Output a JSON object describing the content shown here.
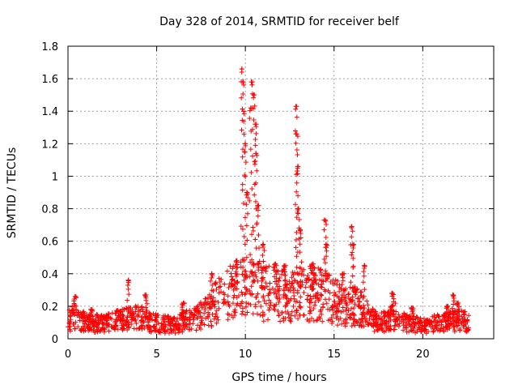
{
  "chart_data": {
    "type": "scatter",
    "title": "Day 328 of 2014, SRMTID for receiver belf",
    "xlabel": "GPS time / hours",
    "ylabel": "SRMTID / TECUs",
    "xlim": [
      0,
      24
    ],
    "ylim": [
      0,
      1.8
    ],
    "xticks": [
      0,
      5,
      10,
      15,
      20
    ],
    "xtick_labels": [
      "0",
      "5",
      "10",
      "15",
      "20"
    ],
    "yticks": [
      0,
      0.2,
      0.4,
      0.6,
      0.8,
      1,
      1.2,
      1.4,
      1.6,
      1.8
    ],
    "ytick_labels": [
      "0",
      "0.2",
      "0.4",
      "0.6",
      "0.8",
      "1",
      "1.2",
      "1.4",
      "1.6",
      "1.8"
    ],
    "grid": true,
    "marker": "plus",
    "series": [
      {
        "name": "SRMTID",
        "color": "#ff0000",
        "profile_x": [
          0.0,
          0.5,
          1.0,
          2.0,
          3.0,
          4.0,
          5.0,
          6.0,
          7.0,
          7.5,
          8.0,
          8.5,
          9.0,
          9.5,
          10.0,
          10.5,
          11.0,
          11.5,
          12.0,
          12.5,
          13.0,
          13.5,
          14.0,
          14.5,
          15.0,
          15.5,
          16.0,
          16.5,
          17.0,
          17.5,
          18.0,
          18.5,
          19.0,
          20.0,
          21.0,
          21.5,
          22.0,
          22.6
        ],
        "profile_y": [
          0.12,
          0.15,
          0.1,
          0.1,
          0.12,
          0.14,
          0.1,
          0.09,
          0.13,
          0.15,
          0.2,
          0.25,
          0.3,
          0.3,
          0.35,
          0.35,
          0.3,
          0.3,
          0.28,
          0.3,
          0.3,
          0.3,
          0.3,
          0.28,
          0.25,
          0.22,
          0.22,
          0.2,
          0.14,
          0.1,
          0.12,
          0.15,
          0.1,
          0.09,
          0.1,
          0.11,
          0.12,
          0.12
        ],
        "spikes": [
          {
            "x": 0.4,
            "y": 0.26
          },
          {
            "x": 1.35,
            "y": 0.18
          },
          {
            "x": 3.4,
            "y": 0.36
          },
          {
            "x": 4.4,
            "y": 0.27
          },
          {
            "x": 6.5,
            "y": 0.22
          },
          {
            "x": 8.1,
            "y": 0.4
          },
          {
            "x": 9.5,
            "y": 0.48
          },
          {
            "x": 9.8,
            "y": 1.66
          },
          {
            "x": 9.85,
            "y": 1.58
          },
          {
            "x": 9.9,
            "y": 1.4
          },
          {
            "x": 10.0,
            "y": 1.2
          },
          {
            "x": 10.1,
            "y": 0.9
          },
          {
            "x": 10.3,
            "y": 1.42
          },
          {
            "x": 10.4,
            "y": 1.58
          },
          {
            "x": 10.5,
            "y": 1.5
          },
          {
            "x": 10.55,
            "y": 1.32
          },
          {
            "x": 10.6,
            "y": 1.14
          },
          {
            "x": 10.7,
            "y": 0.82
          },
          {
            "x": 11.0,
            "y": 0.58
          },
          {
            "x": 11.7,
            "y": 0.46
          },
          {
            "x": 12.2,
            "y": 0.45
          },
          {
            "x": 12.85,
            "y": 1.43
          },
          {
            "x": 12.9,
            "y": 1.26
          },
          {
            "x": 12.95,
            "y": 1.06
          },
          {
            "x": 13.0,
            "y": 0.8
          },
          {
            "x": 13.1,
            "y": 0.67
          },
          {
            "x": 13.8,
            "y": 0.46
          },
          {
            "x": 14.5,
            "y": 0.73
          },
          {
            "x": 14.55,
            "y": 0.58
          },
          {
            "x": 15.5,
            "y": 0.4
          },
          {
            "x": 16.0,
            "y": 0.69
          },
          {
            "x": 16.05,
            "y": 0.58
          },
          {
            "x": 16.7,
            "y": 0.45
          },
          {
            "x": 18.3,
            "y": 0.28
          },
          {
            "x": 19.4,
            "y": 0.19
          },
          {
            "x": 21.4,
            "y": 0.2
          },
          {
            "x": 21.7,
            "y": 0.27
          },
          {
            "x": 22.0,
            "y": 0.22
          }
        ],
        "x_start": 0.0,
        "x_end": 22.6,
        "point_count": 1500
      }
    ]
  }
}
